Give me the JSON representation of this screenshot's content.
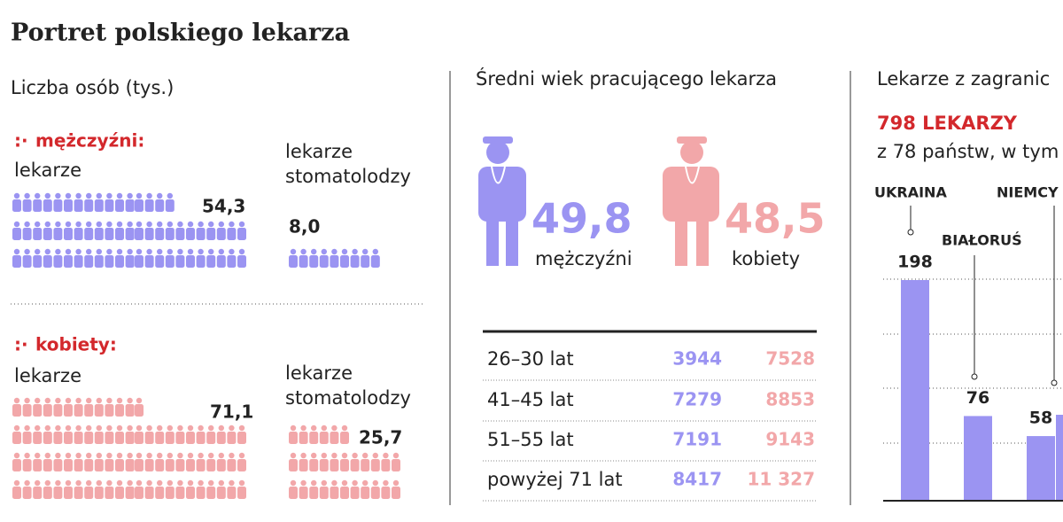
{
  "title": "Portret polskiego lekarza",
  "population": {
    "subtitle": "Liczba osób (tys.)",
    "men": {
      "label": "mężczyźni:",
      "doctors": {
        "label": "lekarze",
        "value": "54,3"
      },
      "dentists": {
        "label": [
          "lekarze",
          "stomatolodzy"
        ],
        "value": "8,0"
      }
    },
    "women": {
      "label": "kobiety:",
      "doctors": {
        "label": "lekarze",
        "value": "71,1"
      },
      "dentists": {
        "label": [
          "lekarze",
          "stomatolodzy"
        ],
        "value": "25,7"
      }
    }
  },
  "age": {
    "title": "Średni wiek pracującego lekarza",
    "men": {
      "value": "49,8",
      "label": "mężczyźni"
    },
    "women": {
      "value": "48,5",
      "label": "kobiety"
    },
    "rows": [
      [
        "26–30 lat",
        "3944",
        "7528"
      ],
      [
        "41–45 lat",
        "7279",
        "8853"
      ],
      [
        "51–55 lat",
        "7191",
        "9143"
      ],
      [
        "powyżej 71 lat",
        "8417",
        "11 327"
      ]
    ]
  },
  "foreign": {
    "title": "Lekarze z zagranic",
    "highlight": "798 LEKARZY",
    "subtitle": "z 78 państw, w tym",
    "categories": [
      "UKRAINA",
      "BIAŁORUŚ",
      "NIEMCY"
    ],
    "values": [
      198,
      76,
      58
    ],
    "ylim": [
      0,
      198
    ],
    "color": "#9b94f2"
  }
}
